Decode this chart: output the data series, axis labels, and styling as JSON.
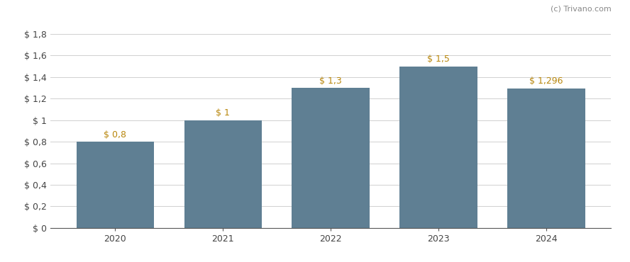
{
  "categories": [
    "2020",
    "2021",
    "2022",
    "2023",
    "2024"
  ],
  "values": [
    0.8,
    1.0,
    1.3,
    1.5,
    1.296
  ],
  "bar_labels": [
    "$ 0,8",
    "$ 1",
    "$ 1,3",
    "$ 1,5",
    "$ 1,296"
  ],
  "bar_color": "#5f7f93",
  "yticks": [
    0,
    0.2,
    0.4,
    0.6,
    0.8,
    1.0,
    1.2,
    1.4,
    1.6,
    1.8
  ],
  "ytick_labels": [
    "$ 0",
    "$ 0,2",
    "$ 0,4",
    "$ 0,6",
    "$ 0,8",
    "$ 1",
    "$ 1,2",
    "$ 1,4",
    "$ 1,6",
    "$ 1,8"
  ],
  "ylim": [
    0,
    1.92
  ],
  "background_color": "#ffffff",
  "grid_color": "#d0d0d0",
  "bar_label_color": "#b8860b",
  "watermark": "(c) Trivano.com",
  "watermark_color": "#888888",
  "figsize": [
    8.88,
    3.7
  ],
  "dpi": 100
}
